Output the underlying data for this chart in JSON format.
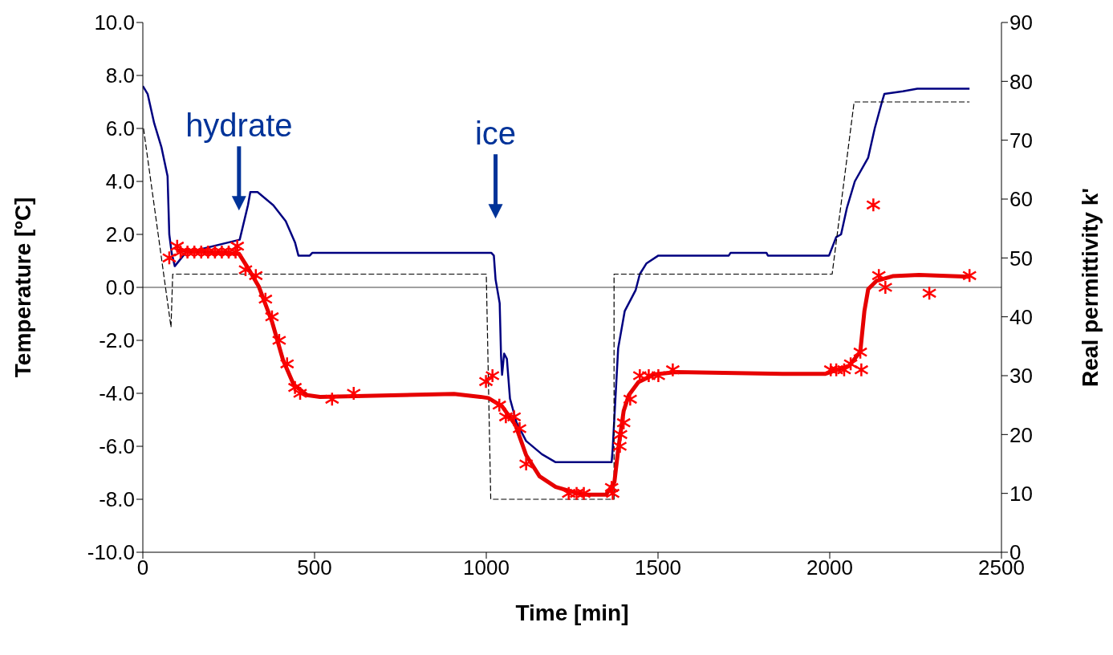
{
  "chart_data": {
    "type": "line",
    "xlabel": "Time [min]",
    "ylabel": "Temperature [ºC]",
    "y2label": "Real permittivity k'",
    "xlim": [
      0,
      2500
    ],
    "xticks": [
      0,
      500,
      1000,
      1500,
      2000,
      2500
    ],
    "ylim": [
      -10,
      10
    ],
    "yticks": [
      {
        "value": -10,
        "label": "-10.0"
      },
      {
        "value": -8,
        "label": "-8.0"
      },
      {
        "value": -6,
        "label": "-6.0"
      },
      {
        "value": -4,
        "label": "-4.0"
      },
      {
        "value": -2,
        "label": "-2.0"
      },
      {
        "value": 0,
        "label": "0.0"
      },
      {
        "value": 2,
        "label": "2.0"
      },
      {
        "value": 4,
        "label": "4.0"
      },
      {
        "value": 6,
        "label": "6.0"
      },
      {
        "value": 8,
        "label": "8.0"
      },
      {
        "value": 10,
        "label": "10.0"
      }
    ],
    "y2lim": [
      0,
      90
    ],
    "y2ticks": [
      0,
      10,
      20,
      30,
      40,
      50,
      60,
      70,
      80,
      90
    ],
    "grid": false,
    "legend": false,
    "ref_lines": [
      {
        "axis": "y",
        "value": 0,
        "color": "#808080"
      }
    ],
    "annotations": [
      "hydrate",
      "ice"
    ],
    "series": [
      {
        "color": "#000080",
        "marker": "none",
        "line_style": "solid",
        "x": [
          0,
          14,
          33,
          54,
          72,
          77,
          84,
          93,
          124,
          282,
          306,
          313,
          334,
          380,
          416,
          443,
          453,
          486,
          493,
          1015,
          1022,
          1027,
          1039,
          1043,
          1046,
          1052,
          1060,
          1069,
          1088,
          1116,
          1162,
          1202,
          1365,
          1368,
          1384,
          1403,
          1435,
          1447,
          1466,
          1501,
          1543,
          1706,
          1711,
          1816,
          1820,
          1998,
          2019,
          2033,
          2050,
          2073,
          2112,
          2131,
          2152,
          2159,
          2213,
          2255,
          2407
        ],
        "values": [
          7.6,
          7.3,
          6.2,
          5.3,
          4.2,
          2.0,
          1.3,
          0.8,
          1.3,
          1.8,
          3.1,
          3.6,
          3.6,
          3.1,
          2.5,
          1.7,
          1.2,
          1.2,
          1.3,
          1.3,
          1.2,
          0.3,
          -0.6,
          -2.6,
          -3.3,
          -2.5,
          -2.7,
          -4.2,
          -5.1,
          -5.8,
          -6.3,
          -6.6,
          -6.6,
          -6.1,
          -2.3,
          -0.9,
          -0.1,
          0.5,
          0.9,
          1.2,
          1.2,
          1.2,
          1.3,
          1.3,
          1.2,
          1.2,
          1.9,
          2.0,
          3.0,
          4.0,
          4.9,
          6.0,
          7.0,
          7.3,
          7.4,
          7.5,
          7.5
        ]
      },
      {
        "color": "#000000",
        "marker": "none",
        "line_style": "dashed",
        "x": [
          2,
          82,
          87,
          1000,
          1013,
          1372,
          1372,
          2007,
          2071,
          2407
        ],
        "values": [
          6.0,
          -1.5,
          0.5,
          0.5,
          -8.0,
          -8.0,
          0.5,
          0.5,
          7.0,
          7.0
        ]
      },
      {
        "type": "scatter",
        "axis": "y2",
        "color": "#ff0000",
        "marker": "cross",
        "x": [
          77,
          100,
          110,
          130,
          150,
          170,
          190,
          210,
          230,
          250,
          270,
          275,
          299,
          329,
          357,
          376,
          397,
          420,
          443,
          458,
          551,
          614,
          999,
          1018,
          1038,
          1057,
          1081,
          1097,
          1116,
          1240,
          1263,
          1284,
          1365,
          1368,
          1389,
          1391,
          1400,
          1419,
          1447,
          1473,
          1501,
          1543,
          2003,
          2019,
          2042,
          2061,
          2092,
          2089,
          2127,
          2143,
          2162,
          2290,
          2407
        ],
        "values": [
          50,
          52,
          51,
          51,
          51,
          51,
          51,
          51,
          51,
          51,
          51,
          52,
          48,
          47,
          43,
          40,
          36,
          32,
          28,
          27,
          26,
          27,
          29,
          30,
          25,
          23,
          23,
          21,
          15,
          10,
          10,
          10,
          11,
          10,
          18,
          20,
          22,
          26,
          30,
          30,
          30,
          31,
          31,
          31,
          31,
          32,
          31,
          34,
          59,
          47,
          45,
          44,
          47
        ]
      },
      {
        "axis": "y2",
        "color": "#e60000",
        "marker": "none",
        "line_style": "solid",
        "x": [
          100,
          280,
          306,
          338,
          376,
          408,
          439,
          478,
          516,
          906,
          983,
          1006,
          1046,
          1085,
          1116,
          1155,
          1202,
          1279,
          1349,
          1373,
          1384,
          1400,
          1415,
          1443,
          1489,
          1552,
          1863,
          1986,
          2057,
          2089,
          2101,
          2112,
          2136,
          2183,
          2260,
          2407
        ],
        "values": [
          51.3,
          50.7,
          48.3,
          45.1,
          39.2,
          32.7,
          28.5,
          26.7,
          26.4,
          26.9,
          26.4,
          26.2,
          24.8,
          21.6,
          16.5,
          12.9,
          11.1,
          9.8,
          9.8,
          11.9,
          17.4,
          24.0,
          26.7,
          28.9,
          30.2,
          30.6,
          30.3,
          30.3,
          31.7,
          34.1,
          41.0,
          44.7,
          46.1,
          46.9,
          47.1,
          46.8
        ]
      }
    ]
  }
}
